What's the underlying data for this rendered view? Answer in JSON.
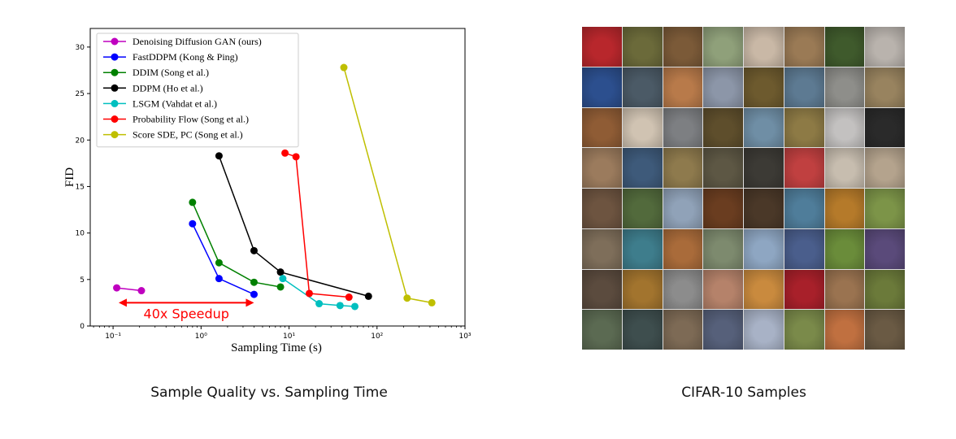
{
  "chart_data": {
    "type": "line",
    "xscale": "log",
    "xlabel": "Sampling Time (s)",
    "ylabel": "FID",
    "xlim": [
      0.055,
      1000
    ],
    "ylim": [
      0,
      32
    ],
    "xticks": [
      0.1,
      1,
      10,
      100,
      1000
    ],
    "xtick_labels": [
      "10⁻¹",
      "10⁰",
      "10¹",
      "10²",
      "10³"
    ],
    "yticks": [
      0,
      5,
      10,
      15,
      20,
      25,
      30
    ],
    "grid": false,
    "legend_position": "top-left",
    "series": [
      {
        "name": "Denoising Diffusion GAN (ours)",
        "color": "#bf00bf",
        "x": [
          0.11,
          0.21
        ],
        "y": [
          4.1,
          3.8
        ]
      },
      {
        "name": "FastDDPM (Kong & Ping)",
        "color": "#0000ff",
        "x": [
          0.8,
          1.6,
          4.0
        ],
        "y": [
          11.0,
          5.1,
          3.4
        ]
      },
      {
        "name": "DDIM (Song et al.)",
        "color": "#008000",
        "x": [
          0.8,
          1.6,
          4.0,
          8.0
        ],
        "y": [
          13.3,
          6.8,
          4.7,
          4.2
        ]
      },
      {
        "name": "DDPM (Ho et al.)",
        "color": "#000000",
        "x": [
          1.6,
          4.0,
          8.0,
          80.0
        ],
        "y": [
          18.3,
          8.1,
          5.8,
          3.2
        ]
      },
      {
        "name": "LSGM (Vahdat et al.)",
        "color": "#00bfbf",
        "x": [
          8.5,
          22.0,
          38.0,
          56.0
        ],
        "y": [
          5.1,
          2.4,
          2.2,
          2.1
        ]
      },
      {
        "name": "Probability Flow (Song et al.)",
        "color": "#ff0000",
        "x": [
          9.0,
          12.0,
          17.0,
          48.0
        ],
        "y": [
          18.6,
          18.2,
          3.5,
          3.1
        ]
      },
      {
        "name": "Score SDE, PC (Song et al.)",
        "color": "#bfbf00",
        "x": [
          42.0,
          220.0,
          420.0
        ],
        "y": [
          27.8,
          3.0,
          2.5
        ]
      }
    ],
    "annotation": {
      "text": "40x Speedup",
      "color": "#ff0000",
      "x_from": 0.21,
      "x_to": 4.0,
      "y": 2.5
    }
  },
  "captions": {
    "left": "Sample Quality vs. Sampling Time",
    "right": "CIFAR-10 Samples"
  },
  "samples": {
    "rows": 8,
    "cols": 8,
    "colors": [
      "#b8272c",
      "#6b6a3a",
      "#7b5a38",
      "#8fa07a",
      "#c9b8a6",
      "#9a7a55",
      "#3f5a2c",
      "#b9b3ad",
      "#2c4f8e",
      "#4b5a66",
      "#b87a4a",
      "#8c96a8",
      "#6d5a2e",
      "#5d7a92",
      "#8e8e8a",
      "#98835f",
      "#8f5c35",
      "#d0c3b2",
      "#7d7f82",
      "#5e4e2c",
      "#6f8ea5",
      "#8d7a45",
      "#c3c1c0",
      "#2a2a2a",
      "#9b7b5d",
      "#3e5a7a",
      "#8e7a4d",
      "#5d5744",
      "#3c3a35",
      "#c04040",
      "#c7bdaf",
      "#b4a38d",
      "#6d5440",
      "#526a3c",
      "#90a2b8",
      "#6a3d20",
      "#4a3828",
      "#4f7d9a",
      "#b57a2a",
      "#7c9448",
      "#7e6e5a",
      "#3e7d8c",
      "#a96b3a",
      "#7d8a6e",
      "#8ea6c2",
      "#4a5e8c",
      "#6a8c3a",
      "#5a4a7a",
      "#5b4b3e",
      "#a2742e",
      "#8c8c8c",
      "#b5826a",
      "#c98a3e",
      "#a8202a",
      "#9a7350",
      "#6b7a3a",
      "#5b6a52",
      "#3e4e4e",
      "#7d6a55",
      "#56607a",
      "#a8b2c6",
      "#7a8a4a",
      "#c07040",
      "#6a5a44"
    ]
  }
}
